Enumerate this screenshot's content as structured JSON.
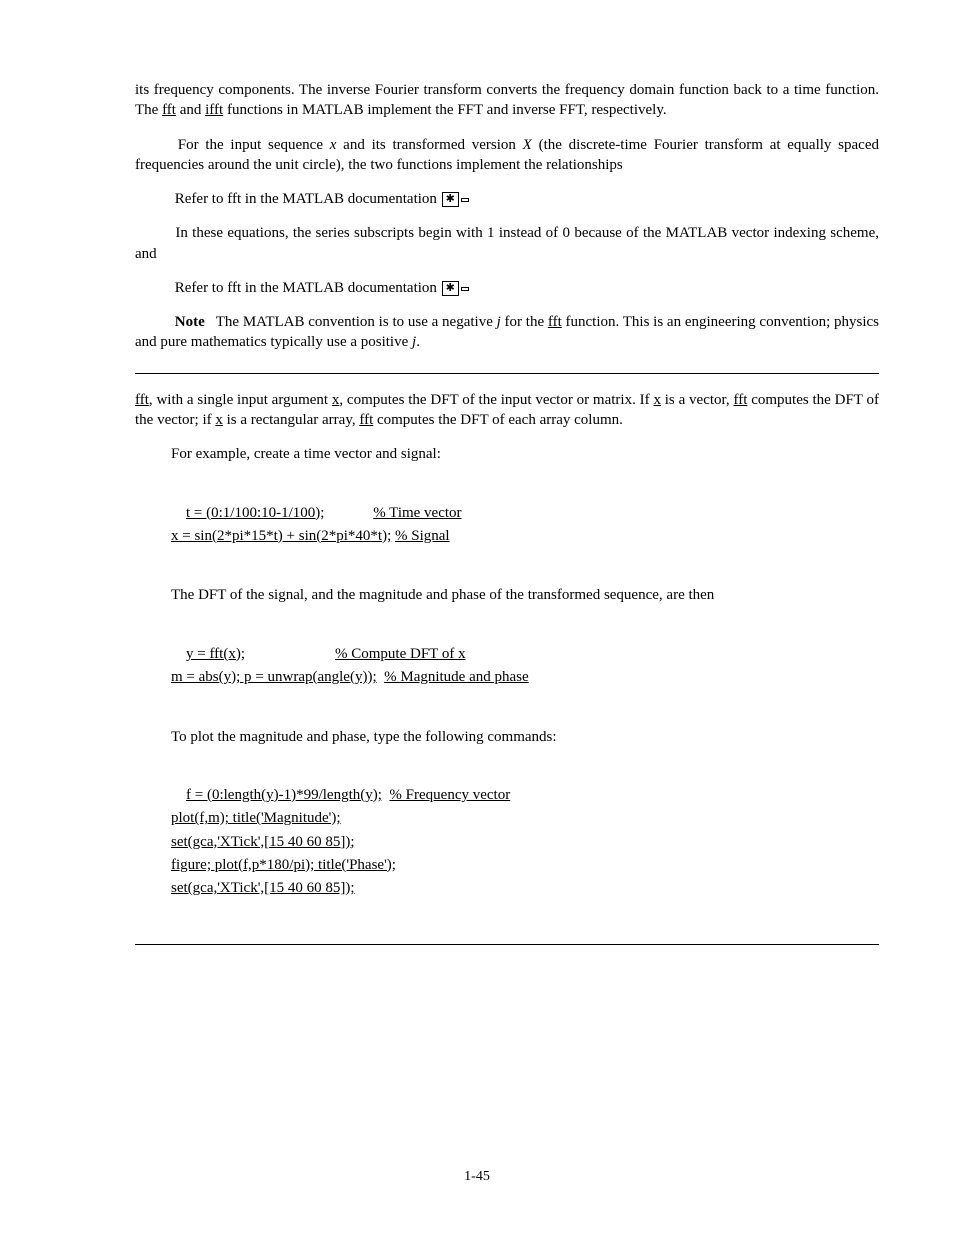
{
  "p1": "its frequency components. The inverse Fourier transform converts the frequency domain function back to a time function. The ",
  "p1b": " and ",
  "p1c": " functions in MATLAB implement the FFT and inverse FFT, respectively.",
  "p1_fft": "fft",
  "p1_ifft": "ifft",
  "p2": "For the input sequence ",
  "p2_x": "x",
  "p2b": " and its transformed version ",
  "p2_X": "X",
  "p2c": " (the discrete-time Fourier transform at equally spaced frequencies around the unit circle), the two functions implement the relationships",
  "p3": "Refer to fft in the MATLAB documentation ",
  "ref1": "✱",
  "ref2": " ",
  "p4a": "In these equations, the series subscripts begin with 1 instead of 0 because of the MATLAB vector indexing scheme, and",
  "p4b": "Refer to fft in the MATLAB documentation ",
  "ref3": "✱",
  "ref4": " ",
  "note_title": "Note",
  "note_body": " The MATLAB convention is to use a negative ",
  "note_j": "j",
  "note_body2": " for the ",
  "note_fft": "fft",
  "note_body3": " function. This is an engineering convention; physics and pure mathematics typically use a positive ",
  "note_j2": "j",
  "note_end": ".",
  "p5a": "fft",
  "p5b": ", with a single input argument ",
  "p5x": "x",
  "p5c": ", computes the DFT of the input vector or matrix. If ",
  "p5x2": "x",
  "p5d": " is a vector, ",
  "p5fft": "fft",
  "p5e": " computes the DFT of the vector; if ",
  "p5x3": "x",
  "p5f": " is a rectangular array, ",
  "p5fft2": "fft",
  "p5g": " computes the DFT of each array column.",
  "p6": "For example, create a time vector and signal:",
  "code1_a": "t = (0:1/100:10-1/100);",
  "code1_a_c": "% Time vector",
  "code1_b": "x = sin(2*pi*15*t) + sin(2*pi*40*t);",
  "code1_b_c": "% Signal",
  "p7": "The DFT of the signal, and the magnitude and phase of the transformed sequence, are then",
  "code2_a": "y = fft(x);",
  "code2_a_c": "% Compute DFT of x",
  "code2_b": "m = abs(y); p = unwrap(angle(y));",
  "code2_b_c": "% Magnitude and phase",
  "p8": "To plot the magnitude and phase, type the following commands:",
  "code3_a": "f = (0:length(y)-1)*99/length(y);",
  "code3_a_c": "% Frequency vector",
  "code3_b": "plot(f,m); title('Magnitude');",
  "code3_c": "set(gca,'XTick',[15 40 60 85]);",
  "code3_d": "figure; plot(f,p*180/pi); title('Phase');",
  "code3_e": "set(gca,'XTick',[15 40 60 85]);",
  "footer": "1-45"
}
